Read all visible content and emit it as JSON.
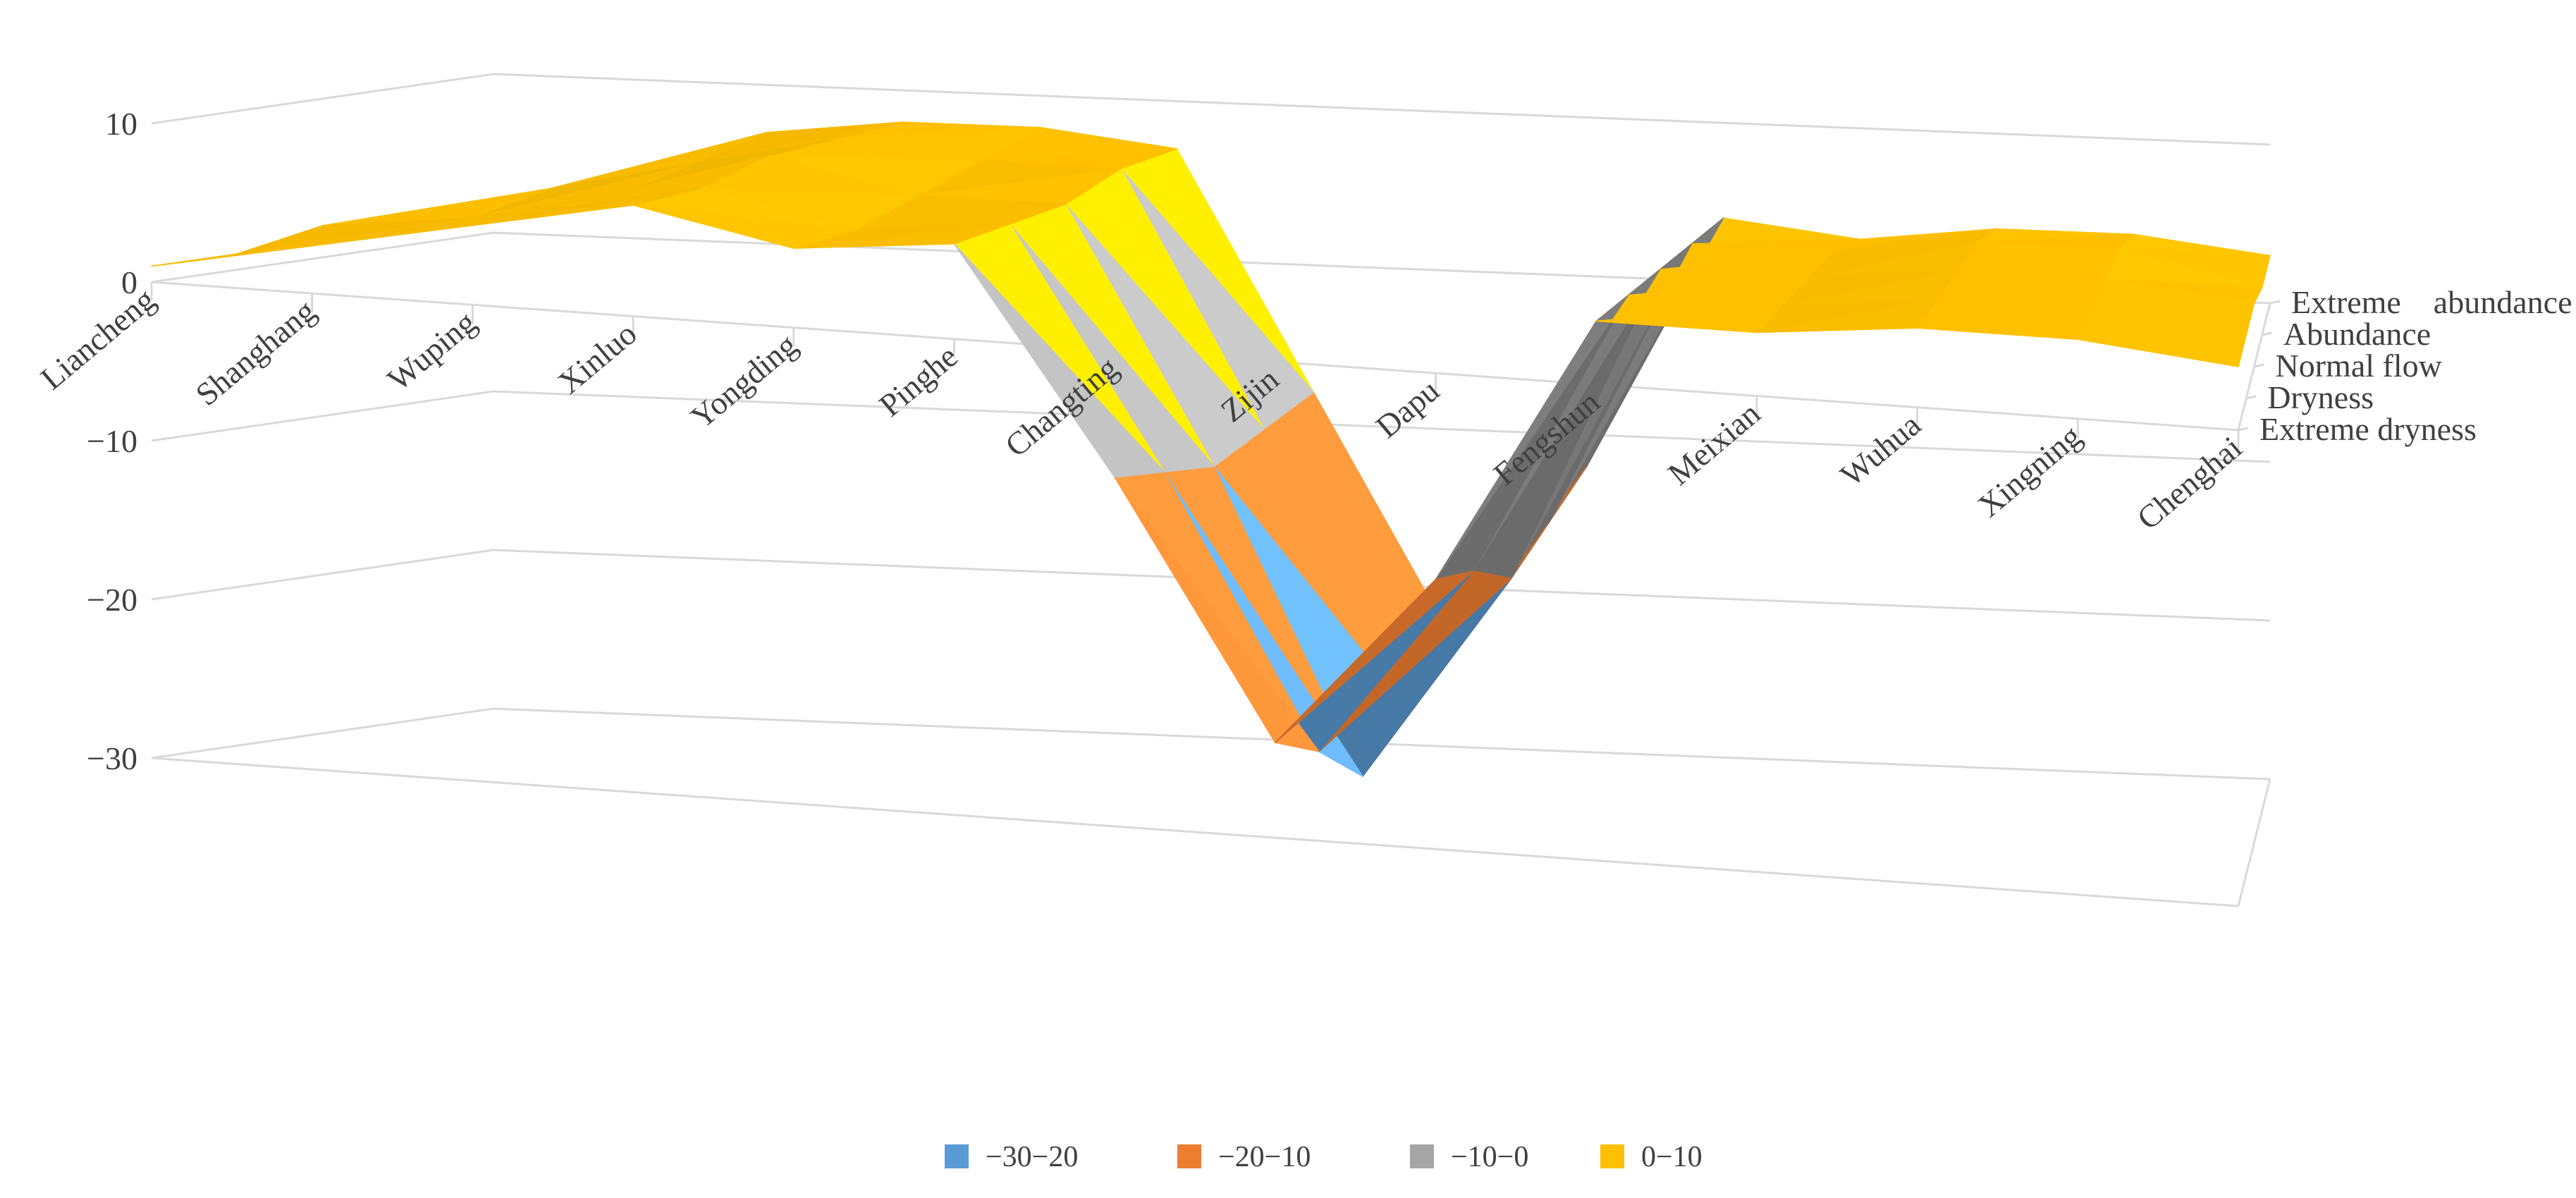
{
  "chart_data": {
    "type": "surface",
    "title": "",
    "xlabel": "",
    "ylabel": "",
    "categories": [
      "Liancheng",
      "Shanghang",
      "Wuping",
      "Xinluo",
      "Yongding",
      "Pinghe",
      "Changting",
      "Zijin",
      "Dapu",
      "Fengshun",
      "Meixian",
      "Wuhua",
      "Xingning",
      "Chenghai"
    ],
    "depth_categories": [
      "Extreme dryness",
      "Dryness",
      "Normal flow",
      "Abundance",
      "Extreme    abundance"
    ],
    "zlim": [
      -30,
      10
    ],
    "z_ticks": [
      "10",
      "0",
      "−10",
      "−20",
      "−30"
    ],
    "series": [
      {
        "name": "Extreme dryness",
        "values": [
          1,
          3,
          5,
          7,
          5,
          6,
          -8,
          -24,
          -13,
          4,
          4,
          5,
          5,
          4
        ]
      },
      {
        "name": "Dryness",
        "values": [
          1,
          3,
          5,
          7,
          5,
          6,
          -9,
          -26,
          -14,
          4,
          4,
          5,
          5,
          4
        ]
      },
      {
        "name": "Normal flow",
        "values": [
          2,
          3,
          5,
          8,
          6,
          6,
          -10,
          -29,
          -16,
          4,
          4,
          5,
          5,
          4
        ]
      },
      {
        "name": "Abundance",
        "values": [
          2,
          4,
          6,
          8,
          7,
          7,
          -9,
          -26,
          -14,
          4,
          4,
          5,
          5,
          3
        ]
      },
      {
        "name": "Extreme    abundance",
        "values": [
          2,
          4,
          7,
          8,
          8,
          7,
          -8,
          -23,
          -12,
          4,
          3,
          4,
          4,
          3
        ]
      }
    ],
    "legend": [
      {
        "label": "−30−20",
        "color": "#5b9bd5",
        "range": [
          -30,
          -20
        ]
      },
      {
        "label": "−20−10",
        "color": "#ed7d31",
        "range": [
          -20,
          -10
        ]
      },
      {
        "label": "−10−0",
        "color": "#a5a5a5",
        "range": [
          -10,
          0
        ]
      },
      {
        "label": "0−10",
        "color": "#ffc000",
        "range": [
          0,
          10
        ]
      }
    ],
    "legend_position": "bottom",
    "grid": true
  }
}
